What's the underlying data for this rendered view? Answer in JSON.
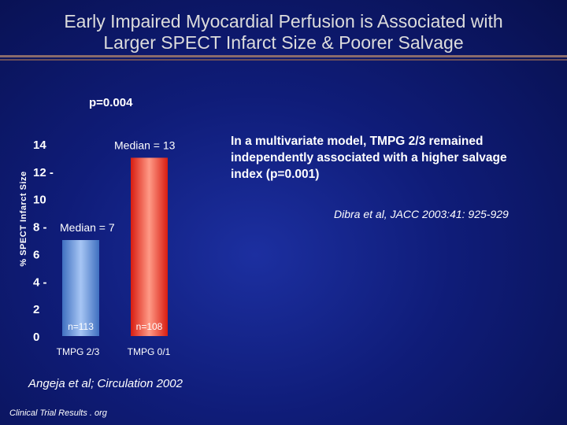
{
  "slide": {
    "title_line1": "Early Impaired Myocardial Perfusion is Associated with",
    "title_line2": "Larger SPECT Infarct Size & Poorer Salvage",
    "p_value": "p=0.004",
    "note": "In a multivariate model, TMPG 2/3 remained independently associated with a higher salvage index (p=0.001)",
    "citation_right": "Dibra et al, JACC 2003:41: 925-929",
    "citation_bottom": "Angeja et al; Circulation 2002",
    "footer": "Clinical Trial Results . org"
  },
  "chart_data": {
    "type": "bar",
    "ylabel": "% SPECT Infarct Size",
    "ylim": [
      0,
      14
    ],
    "yticks": [
      {
        "label": "0",
        "value": 0
      },
      {
        "label": "2",
        "value": 2
      },
      {
        "label": "4 -",
        "value": 4
      },
      {
        "label": "6",
        "value": 6
      },
      {
        "label": "8 -",
        "value": 8
      },
      {
        "label": "10",
        "value": 10
      },
      {
        "label": "12 -",
        "value": 12
      },
      {
        "label": "14",
        "value": 14
      }
    ],
    "categories": [
      "TMPG 2/3",
      "TMPG 0/1"
    ],
    "values": [
      7,
      13
    ],
    "median_labels": [
      "Median = 7",
      "Median = 13"
    ],
    "n_labels": [
      "n=113",
      "n=108"
    ],
    "colors": [
      "#8fb4ec",
      "#ff4a3a"
    ]
  }
}
